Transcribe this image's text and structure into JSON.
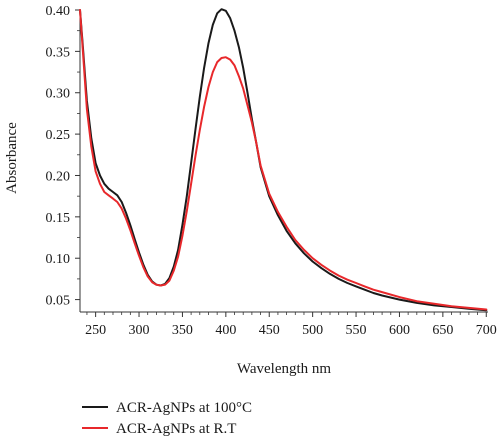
{
  "chart_data": {
    "type": "line",
    "xlabel": "Wavelength nm",
    "ylabel": "Absorbance",
    "xlim": [
      232,
      702
    ],
    "ylim": [
      0.035,
      0.4
    ],
    "xticks": [
      "250",
      "300",
      "350",
      "400",
      "450",
      "500",
      "550",
      "600",
      "650",
      "700"
    ],
    "yticks": [
      "0.05",
      "0.10",
      "0.15",
      "0.20",
      "0.25",
      "0.30",
      "0.35",
      "0.40"
    ],
    "legend_position": "bottom-left",
    "grid": false,
    "series": [
      {
        "name": "ACR-AgNPs at 100°C",
        "color": "#1a1a1a",
        "x": [
          232,
          235,
          240,
          245,
          250,
          255,
          260,
          265,
          270,
          275,
          280,
          285,
          290,
          295,
          300,
          305,
          310,
          315,
          320,
          325,
          330,
          335,
          340,
          345,
          350,
          355,
          360,
          365,
          370,
          375,
          380,
          385,
          390,
          395,
          400,
          405,
          410,
          415,
          420,
          425,
          430,
          435,
          440,
          450,
          460,
          470,
          480,
          490,
          500,
          510,
          520,
          530,
          540,
          550,
          560,
          570,
          580,
          600,
          620,
          640,
          660,
          680,
          700
        ],
        "y": [
          0.4,
          0.36,
          0.29,
          0.245,
          0.215,
          0.2,
          0.19,
          0.184,
          0.18,
          0.176,
          0.168,
          0.155,
          0.14,
          0.123,
          0.107,
          0.092,
          0.08,
          0.072,
          0.068,
          0.067,
          0.069,
          0.076,
          0.09,
          0.11,
          0.14,
          0.175,
          0.215,
          0.256,
          0.295,
          0.33,
          0.36,
          0.382,
          0.396,
          0.401,
          0.399,
          0.39,
          0.375,
          0.355,
          0.33,
          0.3,
          0.268,
          0.24,
          0.21,
          0.175,
          0.152,
          0.133,
          0.118,
          0.106,
          0.096,
          0.088,
          0.081,
          0.075,
          0.07,
          0.066,
          0.062,
          0.058,
          0.055,
          0.05,
          0.046,
          0.043,
          0.041,
          0.039,
          0.037
        ]
      },
      {
        "name": "ACR-AgNPs at R.T",
        "color": "#e8282b",
        "x": [
          232,
          235,
          240,
          245,
          250,
          255,
          260,
          265,
          270,
          275,
          280,
          285,
          290,
          295,
          300,
          305,
          310,
          315,
          320,
          325,
          330,
          335,
          340,
          345,
          350,
          355,
          360,
          365,
          370,
          375,
          380,
          385,
          390,
          395,
          400,
          405,
          410,
          415,
          420,
          425,
          430,
          435,
          440,
          450,
          460,
          470,
          480,
          490,
          500,
          510,
          520,
          530,
          540,
          550,
          560,
          570,
          580,
          600,
          620,
          640,
          660,
          680,
          700
        ],
        "y": [
          0.4,
          0.355,
          0.28,
          0.235,
          0.205,
          0.19,
          0.18,
          0.176,
          0.172,
          0.168,
          0.16,
          0.148,
          0.134,
          0.118,
          0.103,
          0.089,
          0.078,
          0.071,
          0.068,
          0.067,
          0.068,
          0.073,
          0.085,
          0.102,
          0.127,
          0.157,
          0.19,
          0.224,
          0.255,
          0.283,
          0.307,
          0.325,
          0.337,
          0.342,
          0.343,
          0.34,
          0.333,
          0.32,
          0.305,
          0.285,
          0.264,
          0.24,
          0.212,
          0.178,
          0.156,
          0.138,
          0.122,
          0.11,
          0.1,
          0.092,
          0.085,
          0.079,
          0.074,
          0.07,
          0.066,
          0.062,
          0.059,
          0.053,
          0.048,
          0.045,
          0.042,
          0.04,
          0.038
        ]
      }
    ]
  }
}
